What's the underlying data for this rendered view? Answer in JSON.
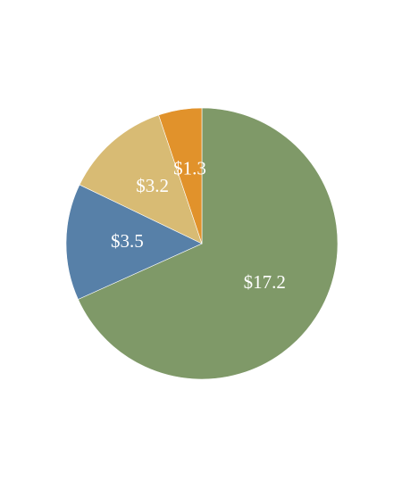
{
  "chart_data": {
    "type": "pie",
    "values": [
      17.2,
      3.5,
      3.2,
      1.3
    ],
    "value_labels": [
      "$17.2",
      "$3.5",
      "$3.2",
      "$1.3"
    ],
    "colors": [
      "#7f9968",
      "#5780a8",
      "#d8bb74",
      "#e1922b"
    ]
  }
}
